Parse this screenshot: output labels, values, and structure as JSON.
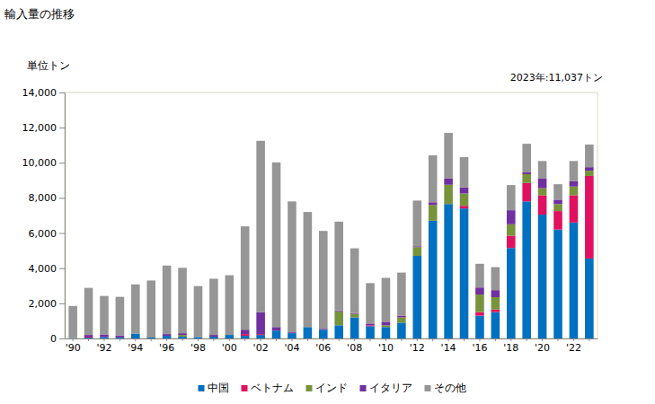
{
  "chart_data": {
    "type": "bar",
    "stacked": true,
    "grid": false,
    "legend": "bottom",
    "title": "輸入量の推移",
    "y_label": "単位トン",
    "annotation": "2023年:11,037トン",
    "categories": [
      "'90",
      null,
      "'92",
      null,
      "'94",
      null,
      "'96",
      null,
      "'98",
      null,
      "'00",
      null,
      "'02",
      null,
      "'04",
      null,
      "'06",
      null,
      "'08",
      null,
      "'10",
      null,
      "'12",
      null,
      "'14",
      null,
      "'16",
      null,
      "'18",
      null,
      "'20",
      null,
      "'22",
      null
    ],
    "ylim": [
      0,
      14000
    ],
    "yticks": [
      0,
      {
        "value": 2000,
        "label": "2,000"
      },
      {
        "value": 4000,
        "label": "4,000"
      },
      {
        "value": 6000,
        "label": "6,000"
      },
      {
        "value": 8000,
        "label": "8,000"
      },
      {
        "value": 10000,
        "label": "10,000"
      },
      {
        "value": 12000,
        "label": "12,000"
      },
      {
        "value": 14000,
        "label": "14,000"
      }
    ],
    "series": [
      {
        "name": "中国",
        "color": "#0070c0",
        "values": [
          20,
          50,
          80,
          60,
          280,
          50,
          150,
          100,
          80,
          100,
          200,
          150,
          200,
          450,
          300,
          650,
          500,
          750,
          1200,
          700,
          650,
          900,
          4700,
          6700,
          7650,
          7400,
          1300,
          1500,
          5150,
          7800,
          7050,
          6200,
          6600,
          4550
        ]
      },
      {
        "name": "ベトナム",
        "color": "#e0115f",
        "values": [
          0,
          50,
          0,
          0,
          0,
          0,
          0,
          0,
          0,
          0,
          0,
          100,
          50,
          0,
          0,
          0,
          0,
          0,
          0,
          50,
          0,
          0,
          0,
          0,
          0,
          150,
          200,
          150,
          700,
          1050,
          1100,
          1050,
          1550,
          4700
        ]
      },
      {
        "name": "インド",
        "color": "#77933c",
        "values": [
          0,
          0,
          0,
          0,
          0,
          0,
          0,
          100,
          0,
          0,
          0,
          0,
          0,
          0,
          0,
          0,
          0,
          800,
          200,
          0,
          100,
          300,
          500,
          900,
          1100,
          700,
          1000,
          700,
          650,
          500,
          400,
          400,
          500,
          300
        ]
      },
      {
        "name": "イタリア",
        "color": "#7030a0",
        "values": [
          0,
          100,
          150,
          100,
          0,
          0,
          100,
          100,
          0,
          100,
          0,
          250,
          1250,
          200,
          50,
          0,
          50,
          50,
          50,
          100,
          200,
          100,
          50,
          150,
          350,
          350,
          400,
          400,
          800,
          100,
          550,
          250,
          300,
          200
        ]
      },
      {
        "name": "その他",
        "color": "#969696",
        "values": [
          1830,
          2680,
          2190,
          2210,
          2800,
          3250,
          3900,
          3720,
          2900,
          3200,
          3400,
          5880,
          9750,
          9370,
          7450,
          6550,
          5570,
          5050,
          3680,
          2300,
          2500,
          2450,
          2600,
          2670,
          2600,
          1720,
          1350,
          1310,
          1430,
          1630,
          1000,
          880,
          1150,
          1287
        ]
      }
    ]
  }
}
